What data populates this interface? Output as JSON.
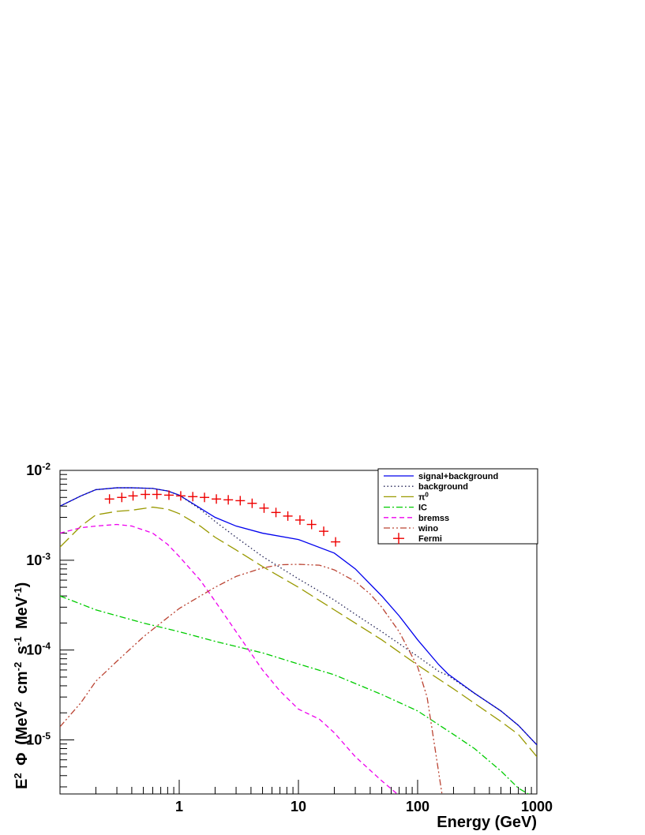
{
  "chart_data": {
    "type": "line",
    "xlabel": "Energy (GeV)",
    "ylabel": {
      "base": "E",
      "base_sup": "2",
      "symbol": "Φ",
      "units_open": "(MeV",
      "units_sup1": "2",
      "units_cm": "cm",
      "units_sup2": "-2",
      "units_s": "s",
      "units_sup3": "-1",
      "units_mev": "MeV",
      "units_sup4": "-1",
      "units_close": ")"
    },
    "x_scale": "log",
    "y_scale": "log",
    "xlim": [
      0.1,
      1000
    ],
    "ylim": [
      2.5e-06,
      0.01
    ],
    "x_tick_labels": [
      {
        "value": 1,
        "label": "1"
      },
      {
        "value": 10,
        "label": "10"
      },
      {
        "value": 100,
        "label": "100"
      },
      {
        "value": 1000,
        "label": "1000"
      }
    ],
    "y_tick_labels": [
      {
        "value": 0.01,
        "base": "10",
        "exp": "-2"
      },
      {
        "value": 0.001,
        "base": "10",
        "exp": "-3"
      },
      {
        "value": 0.0001,
        "base": "10",
        "exp": "-4"
      },
      {
        "value": 1e-05,
        "base": "10",
        "exp": "-5"
      }
    ],
    "grid": false,
    "legend_position": "top-right",
    "series": [
      {
        "name": "signal+background",
        "color": "#0000ee",
        "style": "solid",
        "points": [
          [
            0.1,
            0.004
          ],
          [
            0.15,
            0.0052
          ],
          [
            0.2,
            0.0061
          ],
          [
            0.3,
            0.0064
          ],
          [
            0.4,
            0.0064
          ],
          [
            0.6,
            0.0063
          ],
          [
            0.8,
            0.0059
          ],
          [
            1,
            0.0053
          ],
          [
            1.5,
            0.0038
          ],
          [
            2,
            0.003
          ],
          [
            3,
            0.0024
          ],
          [
            5,
            0.002
          ],
          [
            10,
            0.0017
          ],
          [
            20,
            0.0012
          ],
          [
            30,
            0.0008
          ],
          [
            50,
            0.0004
          ],
          [
            70,
            0.00024
          ],
          [
            100,
            0.00013
          ],
          [
            150,
            6.9e-05
          ],
          [
            180,
            5.4e-05
          ],
          [
            300,
            3.3e-05
          ],
          [
            500,
            2.1e-05
          ],
          [
            700,
            1.45e-05
          ],
          [
            1000,
            8.8e-06
          ]
        ]
      },
      {
        "name": "background",
        "color": "#222255",
        "style": "dotted",
        "points": [
          [
            0.1,
            0.004
          ],
          [
            0.15,
            0.0052
          ],
          [
            0.2,
            0.0061
          ],
          [
            0.3,
            0.0064
          ],
          [
            0.4,
            0.0064
          ],
          [
            0.6,
            0.0063
          ],
          [
            0.8,
            0.0059
          ],
          [
            1,
            0.0053
          ],
          [
            1.5,
            0.0037
          ],
          [
            2,
            0.0027
          ],
          [
            3,
            0.0018
          ],
          [
            5,
            0.0011
          ],
          [
            10,
            0.00062
          ],
          [
            20,
            0.00036
          ],
          [
            30,
            0.00025
          ],
          [
            50,
            0.00016
          ],
          [
            100,
            8.5e-05
          ],
          [
            150,
            5.8e-05
          ],
          [
            180,
            5.2e-05
          ],
          [
            300,
            3.3e-05
          ],
          [
            500,
            2.1e-05
          ],
          [
            700,
            1.45e-05
          ],
          [
            1000,
            8.8e-06
          ]
        ]
      },
      {
        "name": "π0",
        "label_main": "π",
        "label_sup": "0",
        "color": "#999900",
        "style": "longdash",
        "points": [
          [
            0.1,
            0.0014
          ],
          [
            0.15,
            0.0024
          ],
          [
            0.2,
            0.0032
          ],
          [
            0.3,
            0.0035
          ],
          [
            0.4,
            0.0036
          ],
          [
            0.6,
            0.0039
          ],
          [
            0.8,
            0.0037
          ],
          [
            1,
            0.0033
          ],
          [
            1.5,
            0.0024
          ],
          [
            2,
            0.0018
          ],
          [
            3,
            0.0013
          ],
          [
            5,
            0.00085
          ],
          [
            10,
            0.0005
          ],
          [
            20,
            0.00028
          ],
          [
            50,
            0.00013
          ],
          [
            100,
            6.8e-05
          ],
          [
            200,
            3.7e-05
          ],
          [
            500,
            1.6e-05
          ],
          [
            700,
            1.15e-05
          ],
          [
            1000,
            6.5e-06
          ]
        ]
      },
      {
        "name": "IC",
        "color": "#00cc00",
        "style": "dashdot",
        "points": [
          [
            0.1,
            0.0004
          ],
          [
            0.2,
            0.00028
          ],
          [
            0.5,
            0.0002
          ],
          [
            1,
            0.00016
          ],
          [
            2,
            0.000125
          ],
          [
            5,
            9.3e-05
          ],
          [
            10,
            7e-05
          ],
          [
            20,
            5.3e-05
          ],
          [
            50,
            3.2e-05
          ],
          [
            100,
            2.1e-05
          ],
          [
            200,
            1.15e-05
          ],
          [
            300,
            8e-06
          ],
          [
            500,
            4.5e-06
          ],
          [
            700,
            2.9e-06
          ],
          [
            1000,
            2.2e-06
          ]
        ]
      },
      {
        "name": "bremss",
        "color": "#ee00ee",
        "style": "dashed",
        "points": [
          [
            0.1,
            0.002
          ],
          [
            0.15,
            0.0023
          ],
          [
            0.2,
            0.0024
          ],
          [
            0.3,
            0.0025
          ],
          [
            0.4,
            0.0024
          ],
          [
            0.6,
            0.002
          ],
          [
            0.8,
            0.0015
          ],
          [
            1,
            0.0011
          ],
          [
            1.5,
            0.0006
          ],
          [
            2,
            0.00035
          ],
          [
            3,
            0.00016
          ],
          [
            5,
            6e-05
          ],
          [
            7,
            3.5e-05
          ],
          [
            10,
            2.2e-05
          ],
          [
            15,
            1.7e-05
          ],
          [
            20,
            1.2e-05
          ],
          [
            30,
            6.5e-06
          ],
          [
            50,
            3.5e-06
          ],
          [
            70,
            2.4e-06
          ]
        ]
      },
      {
        "name": "wino",
        "color": "#bb4433",
        "style": "dashdotdot",
        "points": [
          [
            0.1,
            1.4e-05
          ],
          [
            0.15,
            2.6e-05
          ],
          [
            0.2,
            4.5e-05
          ],
          [
            0.3,
            7.5e-05
          ],
          [
            0.5,
            0.00014
          ],
          [
            0.7,
            0.0002
          ],
          [
            1,
            0.00029
          ],
          [
            2,
            0.0005
          ],
          [
            3,
            0.00066
          ],
          [
            5,
            0.00082
          ],
          [
            7,
            0.00089
          ],
          [
            10,
            0.0009
          ],
          [
            15,
            0.00088
          ],
          [
            20,
            0.00078
          ],
          [
            30,
            0.00058
          ],
          [
            40,
            0.00042
          ],
          [
            50,
            0.0003
          ],
          [
            70,
            0.00016
          ],
          [
            100,
            6.5e-05
          ],
          [
            120,
            3e-05
          ],
          [
            140,
            8e-06
          ],
          [
            160,
            2.5e-06
          ]
        ]
      }
    ],
    "points_series": {
      "name": "Fermi",
      "color": "#ee0000",
      "marker": "cross",
      "points": [
        [
          0.26,
          0.0048
        ],
        [
          0.33,
          0.005
        ],
        [
          0.41,
          0.0052
        ],
        [
          0.52,
          0.0054
        ],
        [
          0.65,
          0.0054
        ],
        [
          0.82,
          0.0053
        ],
        [
          1.03,
          0.0052
        ],
        [
          1.3,
          0.0051
        ],
        [
          1.63,
          0.005
        ],
        [
          2.05,
          0.0048
        ],
        [
          2.58,
          0.0047
        ],
        [
          3.25,
          0.0046
        ],
        [
          4.09,
          0.0043
        ],
        [
          5.15,
          0.0038
        ],
        [
          6.48,
          0.0034
        ],
        [
          8.15,
          0.0031
        ],
        [
          10.3,
          0.0028
        ],
        [
          12.9,
          0.0025
        ],
        [
          16.3,
          0.0021
        ],
        [
          20.5,
          0.0016
        ]
      ]
    }
  }
}
